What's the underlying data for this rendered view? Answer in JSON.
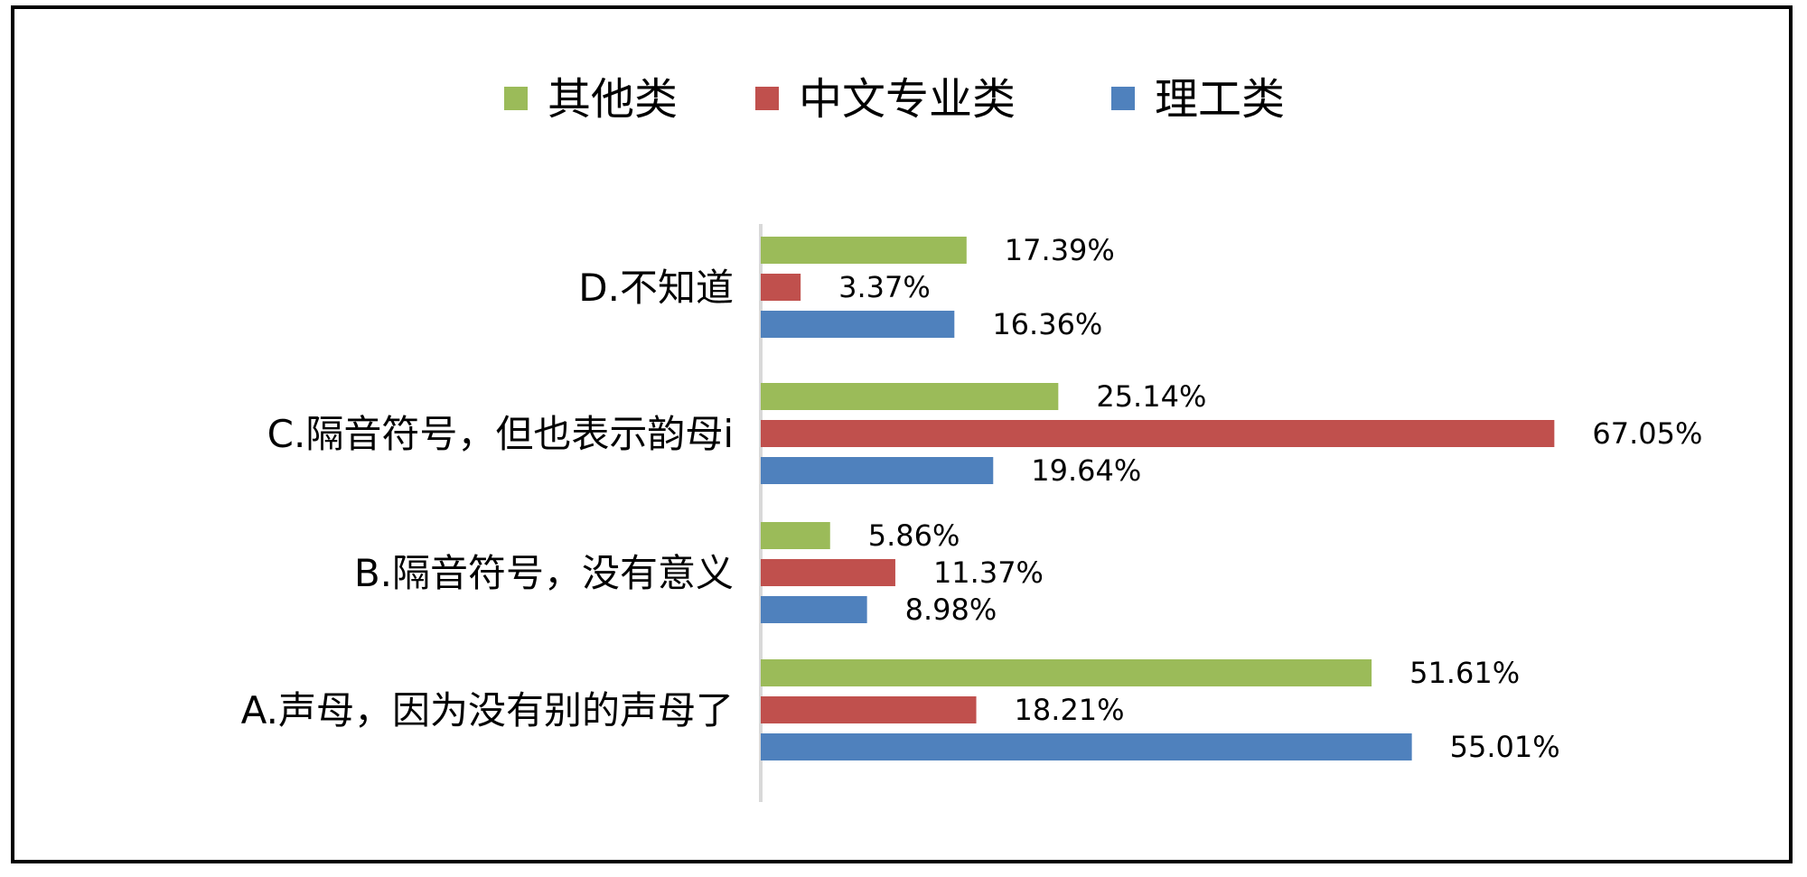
{
  "chart_data": {
    "type": "bar",
    "orientation": "horizontal",
    "categories": [
      "A.声母，因为没有别的声母了",
      "B.隔音符号，没有意义",
      "C.隔音符号，但也表示韵母i",
      "D.不知道"
    ],
    "series": [
      {
        "name": "其他类",
        "color": "#9BBB59",
        "values": [
          51.61,
          5.86,
          25.14,
          17.39
        ]
      },
      {
        "name": "中文专业类",
        "color": "#C0504D",
        "values": [
          18.21,
          11.37,
          67.05,
          3.37
        ]
      },
      {
        "name": "理工类",
        "color": "#4F81BD",
        "values": [
          55.01,
          8.98,
          19.64,
          16.36
        ]
      }
    ],
    "value_labels": [
      [
        "51.61%",
        "5.86%",
        "25.14%",
        "17.39%"
      ],
      [
        "18.21%",
        "11.37%",
        "67.05%",
        "3.37%"
      ],
      [
        "55.01%",
        "8.98%",
        "19.64%",
        "16.36%"
      ]
    ],
    "xlim": [
      0,
      100
    ],
    "grid": false,
    "legend_position": "top"
  }
}
